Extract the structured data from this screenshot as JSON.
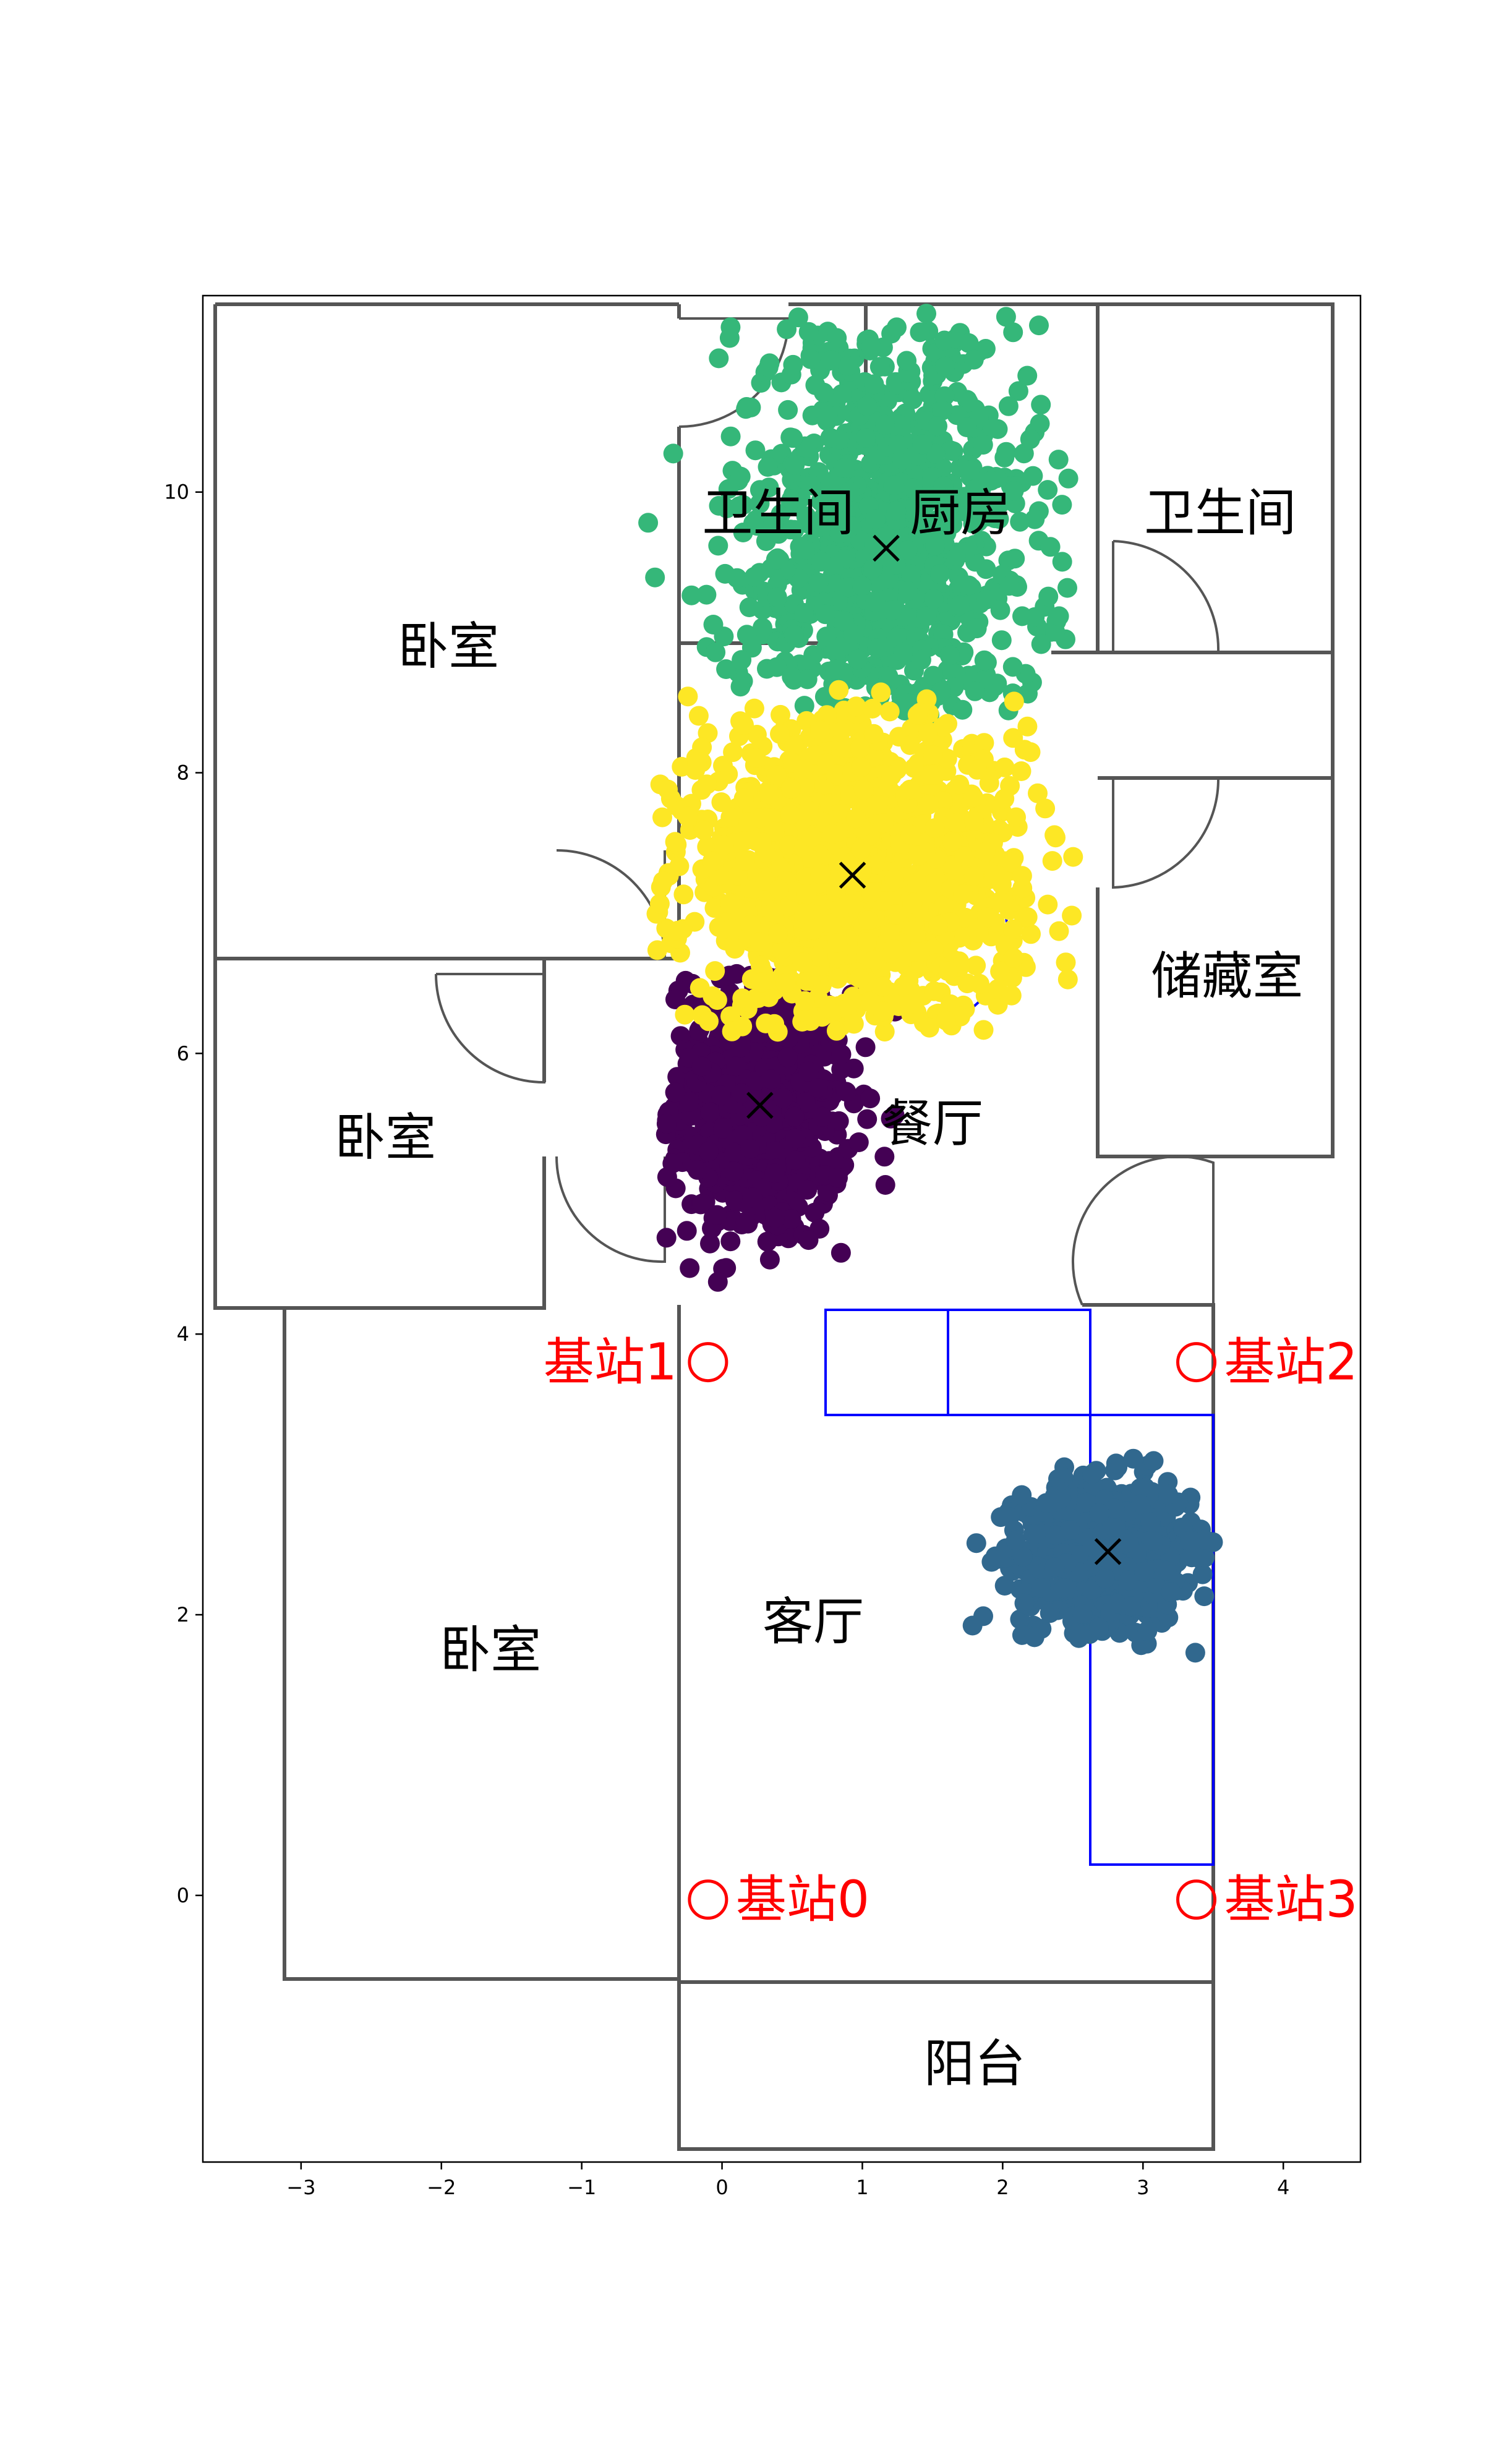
{
  "chart_data": {
    "type": "scatter",
    "title": "",
    "xlabel": "",
    "ylabel": "",
    "xlim": [
      -3.7,
      4.55
    ],
    "ylim": [
      -1.9,
      11.4
    ],
    "x_ticks": [
      -3,
      -2,
      -1,
      0,
      1,
      2,
      3,
      4
    ],
    "x_tick_labels": [
      "−3",
      "−2",
      "−1",
      "0",
      "1",
      "2",
      "3",
      "4"
    ],
    "y_ticks": [
      0,
      2,
      4,
      6,
      8,
      10
    ],
    "y_tick_labels": [
      "0",
      "2",
      "4",
      "6",
      "8",
      "10"
    ],
    "grid": false,
    "room_labels": [
      {
        "text": "卧室",
        "x": -1.95,
        "y": 8.9
      },
      {
        "text": "卧室",
        "x": -2.4,
        "y": 5.4
      },
      {
        "text": "卧室",
        "x": -1.65,
        "y": 1.75
      },
      {
        "text": "卫生间",
        "x": 0.4,
        "y": 9.85
      },
      {
        "text": "厨房",
        "x": 1.7,
        "y": 9.85
      },
      {
        "text": "卫生间",
        "x": 3.55,
        "y": 9.85
      },
      {
        "text": "储藏室",
        "x": 3.6,
        "y": 6.55
      },
      {
        "text": "餐厅",
        "x": 1.5,
        "y": 5.5
      },
      {
        "text": "客厅",
        "x": 0.65,
        "y": 1.95
      },
      {
        "text": "阳台",
        "x": 1.8,
        "y": -1.2
      }
    ],
    "base_stations": [
      {
        "name": "基站0",
        "x": -0.1,
        "y": -0.03,
        "label_side": "right"
      },
      {
        "name": "基站1",
        "x": -0.1,
        "y": 3.8,
        "label_side": "left"
      },
      {
        "name": "基站2",
        "x": 3.38,
        "y": 3.8,
        "label_side": "right"
      },
      {
        "name": "基站3",
        "x": 3.38,
        "y": -0.03,
        "label_side": "right"
      }
    ],
    "series": [
      {
        "color": "#440154",
        "center": [
          0.27,
          5.63
        ],
        "spread": [
          0.32,
          0.5
        ],
        "points": 700,
        "bounds": [
          -0.4,
          1.55,
          4.3,
          6.6
        ]
      },
      {
        "color": "#31688e",
        "center": [
          2.75,
          2.45
        ],
        "spread": [
          0.3,
          0.25
        ],
        "points": 800,
        "bounds": [
          0.6,
          3.55,
          0.9,
          3.25
        ]
      },
      {
        "color": "#35b779",
        "center": [
          1.17,
          9.6
        ],
        "spread": [
          0.55,
          0.85
        ],
        "points": 1000,
        "bounds": [
          -0.55,
          2.5,
          8.4,
          11.3
        ]
      },
      {
        "color": "#fde725",
        "center": [
          0.93,
          7.27
        ],
        "spread": [
          0.6,
          0.55
        ],
        "points": 1500,
        "bounds": [
          -0.5,
          2.6,
          6.15,
          8.6
        ]
      }
    ],
    "centroids": [
      {
        "x": 0.27,
        "y": 5.63
      },
      {
        "x": 2.75,
        "y": 2.45
      },
      {
        "x": 1.17,
        "y": 9.6
      },
      {
        "x": 0.93,
        "y": 7.27
      }
    ],
    "colors": {
      "wall": "#555555",
      "station": "#ff0000",
      "furniture": "#0000ff",
      "centroid": "#000000"
    }
  }
}
